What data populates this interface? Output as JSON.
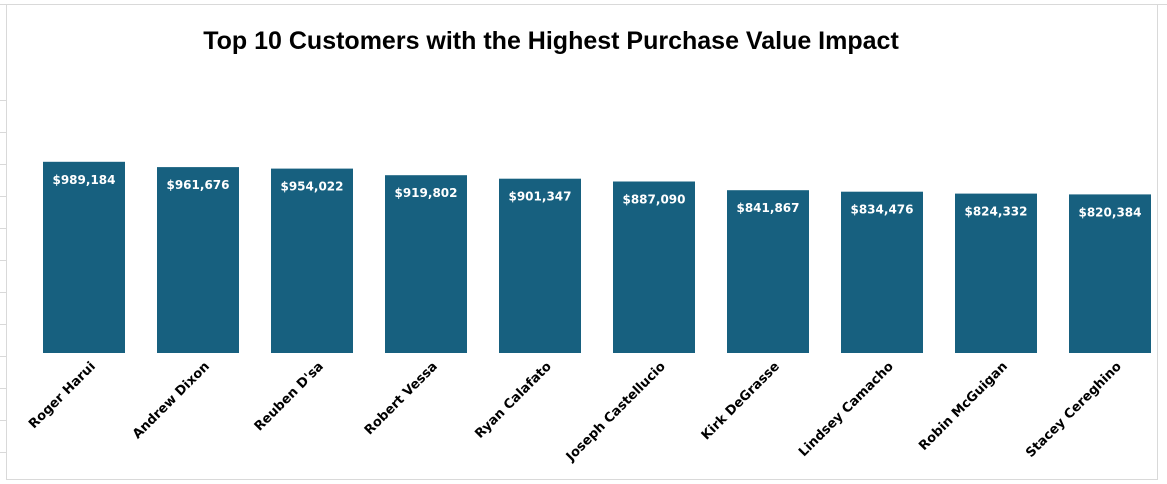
{
  "chart_data": {
    "type": "bar",
    "title": "Top 10 Customers with the Highest Purchase Value Impact",
    "xlabel": "",
    "ylabel": "",
    "ylim": [
      0,
      1050000
    ],
    "grid": false,
    "legend": "none",
    "bar_color": "#17607f",
    "categories": [
      "Roger Harui",
      "Andrew Dixon",
      "Reuben D'sa",
      "Robert Vessa",
      "Ryan Calafato",
      "Joseph Castellucio",
      "Kirk DeGrasse",
      "Lindsey Camacho",
      "Robin McGuigan",
      "Stacey Cereghino"
    ],
    "values": [
      989184,
      961676,
      954022,
      919802,
      901347,
      887090,
      841867,
      834476,
      824332,
      820384
    ],
    "value_labels": [
      "$989,184",
      "$961,676",
      "$954,022",
      "$919,802",
      "$901,347",
      "$887,090",
      "$841,867",
      "$834,476",
      "$824,332",
      "$820,384"
    ]
  }
}
